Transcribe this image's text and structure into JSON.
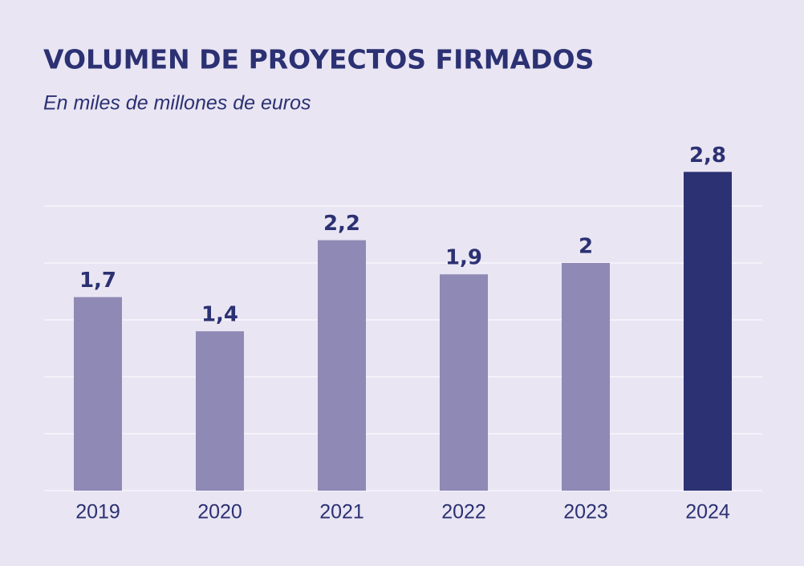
{
  "chart_data": {
    "type": "bar",
    "title": "VOLUMEN DE PROYECTOS FIRMADOS",
    "subtitle": "En miles de millones de euros",
    "categories": [
      "2019",
      "2020",
      "2021",
      "2022",
      "2023",
      "2024"
    ],
    "values": [
      1.7,
      1.4,
      2.2,
      1.9,
      2,
      2.8
    ],
    "value_labels": [
      "1,7",
      "1,4",
      "2,2",
      "1,9",
      "2",
      "2,8"
    ],
    "colors": [
      "#8f89b5",
      "#8f89b5",
      "#8f89b5",
      "#8f89b5",
      "#8f89b5",
      "#2b3172"
    ],
    "ylim": [
      0,
      3
    ],
    "yticks": [
      0,
      0.5,
      1,
      1.5,
      2,
      2.5
    ],
    "grid": true
  }
}
